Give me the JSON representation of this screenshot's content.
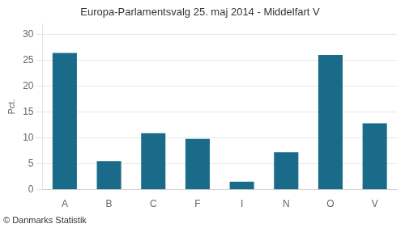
{
  "chart_data": {
    "type": "bar",
    "title": "Europa-Parlamentsvalg 25. maj 2014 - Middelfart V",
    "categories": [
      "A",
      "B",
      "C",
      "F",
      "I",
      "N",
      "O",
      "V"
    ],
    "values": [
      26.4,
      5.5,
      10.9,
      9.8,
      1.5,
      7.2,
      26.0,
      12.8
    ],
    "color": "#1a6b8a",
    "ylabel": "Pct.",
    "ylim": [
      0,
      32
    ],
    "yticks": [
      0,
      5,
      10,
      15,
      20,
      25,
      30
    ],
    "grid": true,
    "annotations": [
      {
        "text": "© Danmarks Statistik"
      }
    ]
  }
}
